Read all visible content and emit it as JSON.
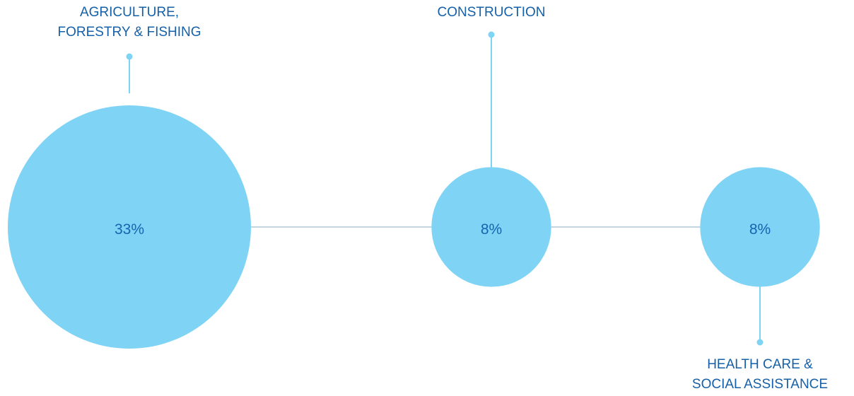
{
  "chart_data": {
    "type": "bubble",
    "categories": [
      "AGRICULTURE, FORESTRY & FISHING",
      "CONSTRUCTION",
      "HEALTH CARE & SOCIAL ASSISTANCE"
    ],
    "values": [
      33,
      8,
      8
    ],
    "value_labels": [
      "33%",
      "8%",
      "8%"
    ],
    "label_lines": [
      [
        "AGRICULTURE,",
        "FORESTRY & FISHING"
      ],
      [
        "CONSTRUCTION"
      ],
      [
        "HEALTH CARE &",
        "SOCIAL ASSISTANCE"
      ]
    ],
    "colors": {
      "bubble": "#7fd3f5",
      "connector": "#9fbccb",
      "callout": "#7fd3f5",
      "text": "#1560a8"
    }
  }
}
